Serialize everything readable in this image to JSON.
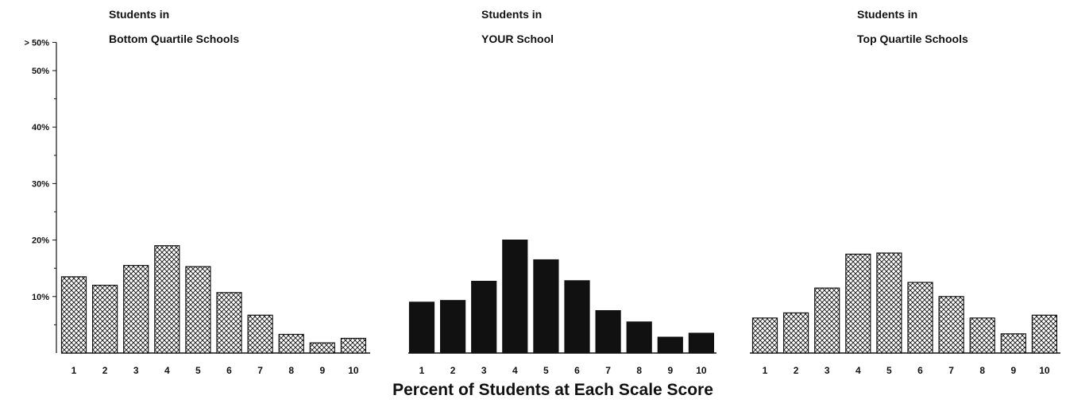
{
  "chart_data": {
    "type": "bar",
    "xlabel": "Percent of Students at Each Scale Score",
    "ylabel": "",
    "ylim": [
      0,
      55
    ],
    "y_ticks": [
      {
        "value": 10,
        "label": "10%"
      },
      {
        "value": 20,
        "label": "20%"
      },
      {
        "value": 30,
        "label": "30%"
      },
      {
        "value": 40,
        "label": "40%"
      },
      {
        "value": 50,
        "label": "50%"
      },
      {
        "value": 55,
        "label": "> 50%"
      }
    ],
    "y_minor_ticks": [
      5,
      15,
      25,
      35,
      45
    ],
    "categories": [
      "1",
      "2",
      "3",
      "4",
      "5",
      "6",
      "7",
      "8",
      "9",
      "10"
    ],
    "grid": false,
    "panels": [
      {
        "title_line1": "Students in",
        "title_line2": "Bottom Quartile Schools",
        "fill": "hatched",
        "values": [
          13.5,
          12,
          15.5,
          19,
          15.3,
          10.7,
          6.7,
          3.3,
          1.8,
          2.6
        ]
      },
      {
        "title_line1": "Students in",
        "title_line2": "YOUR School",
        "fill": "solid",
        "values": [
          9,
          9.3,
          12.7,
          20,
          16.5,
          12.8,
          7.5,
          5.5,
          2.8,
          3.5
        ]
      },
      {
        "title_line1": "Students in",
        "title_line2": "Top Quartile Schools",
        "fill": "hatched",
        "values": [
          6.2,
          7.1,
          11.5,
          17.5,
          17.7,
          12.5,
          10,
          6.2,
          3.4,
          6.7
        ]
      }
    ],
    "colors": {
      "ink": "#111111",
      "background": "#ffffff"
    }
  }
}
